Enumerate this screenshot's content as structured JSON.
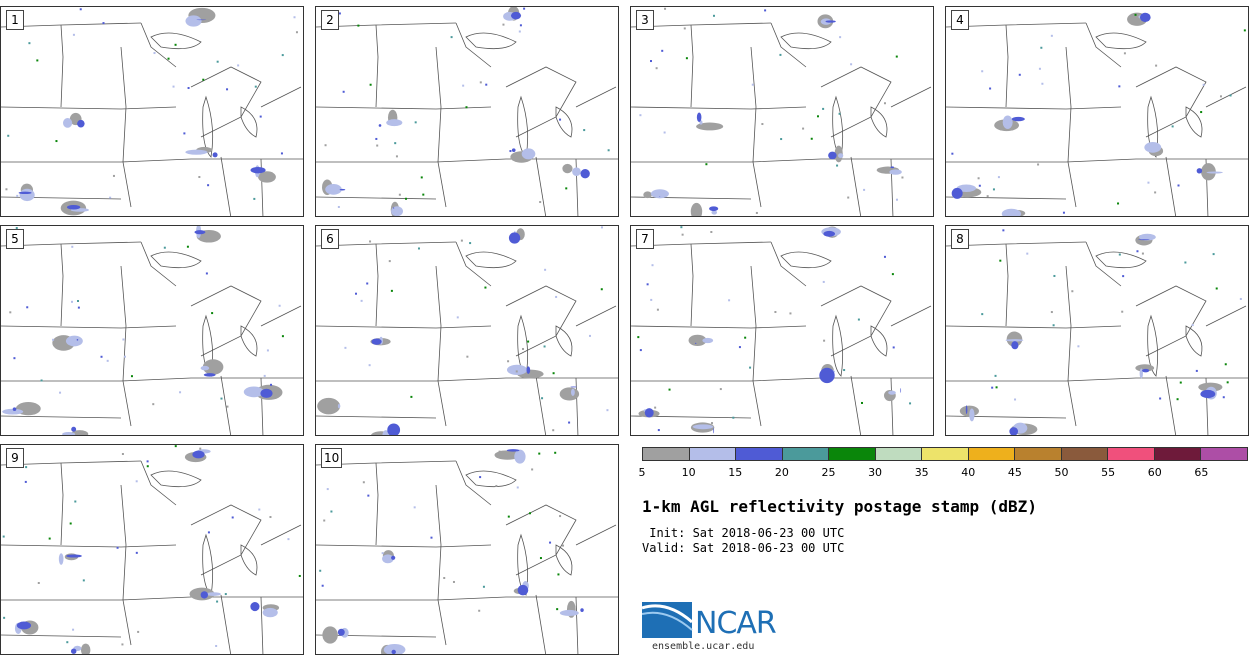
{
  "panels": [
    {
      "label": "1"
    },
    {
      "label": "2"
    },
    {
      "label": "3"
    },
    {
      "label": "4"
    },
    {
      "label": "5"
    },
    {
      "label": "6"
    },
    {
      "label": "7"
    },
    {
      "label": "8"
    },
    {
      "label": "9"
    },
    {
      "label": "10"
    }
  ],
  "colorbar": {
    "colors": [
      "#a0a0a0",
      "#b4bee9",
      "#4f5bd5",
      "#4b9a9b",
      "#0a860a",
      "#bfdcbf",
      "#ede36a",
      "#eeb01c",
      "#b9812e",
      "#8a5a3c",
      "#f0507c",
      "#6e1a3a",
      "#ad4ea6"
    ],
    "ticks": [
      "5",
      "10",
      "15",
      "20",
      "25",
      "30",
      "35",
      "40",
      "45",
      "50",
      "55",
      "60",
      "65"
    ]
  },
  "title": "1-km AGL reflectivity postage stamp (dBZ)",
  "init": " Init: Sat 2018-06-23 00 UTC",
  "valid": "Valid: Sat 2018-06-23 00 UTC",
  "logo": {
    "name": "NCAR",
    "url": "ensemble.ucar.edu"
  }
}
